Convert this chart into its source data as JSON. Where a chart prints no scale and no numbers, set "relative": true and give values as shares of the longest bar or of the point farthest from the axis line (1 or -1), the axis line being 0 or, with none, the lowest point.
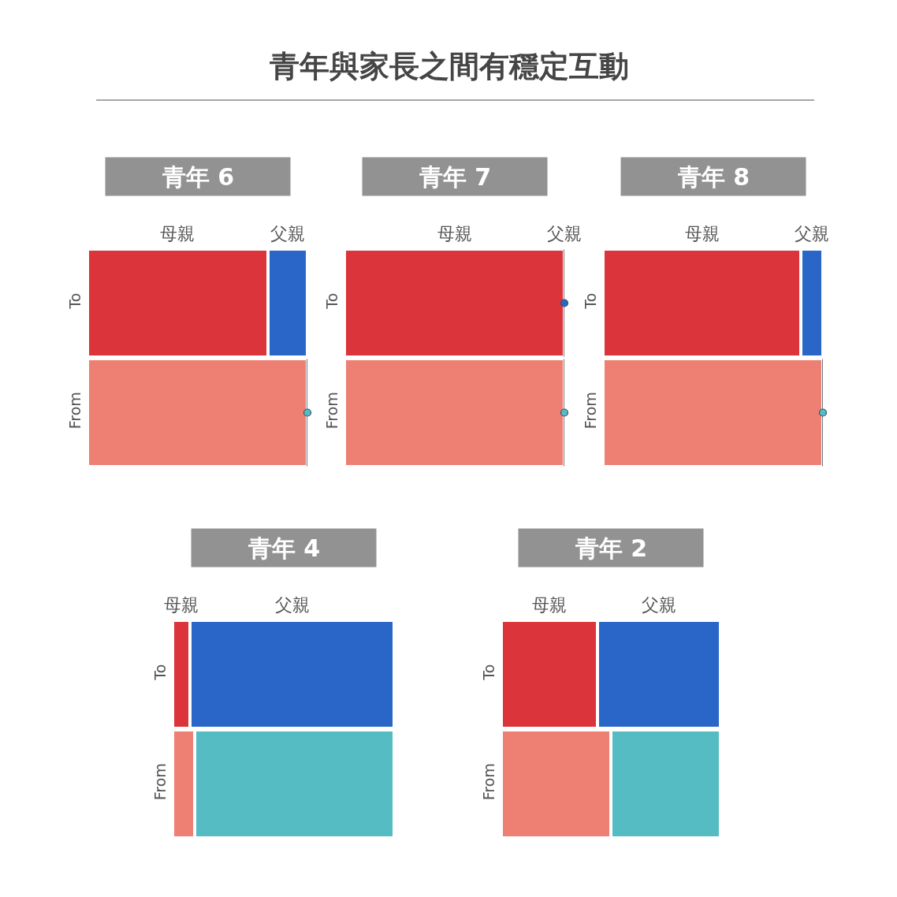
{
  "chart_data": [
    {
      "type": "other",
      "title": "青年與家長之間有穩定互動"
    },
    {
      "type": "bar",
      "orientation": "horizontal",
      "stacked": true,
      "relative": true,
      "title": "青年 6",
      "categories": [
        "To",
        "From"
      ],
      "series": [
        {
          "name": "母親",
          "colors": [
            "#db343a",
            "#ee7f73"
          ],
          "values": [
            0.82,
            1
          ]
        },
        {
          "name": "父親",
          "colors": [
            "#2a66c8",
            "#56bcc3"
          ],
          "values": [
            0.18,
            0
          ]
        }
      ]
    },
    {
      "type": "bar",
      "orientation": "horizontal",
      "stacked": true,
      "relative": true,
      "title": "青年 7",
      "categories": [
        "To",
        "From"
      ],
      "series": [
        {
          "name": "母親",
          "colors": [
            "#db343a",
            "#ee7f73"
          ],
          "values": [
            1,
            1
          ]
        },
        {
          "name": "父親",
          "colors": [
            "#2a66c8",
            "#56bcc3"
          ],
          "values": [
            0,
            0
          ]
        }
      ]
    },
    {
      "type": "bar",
      "orientation": "horizontal",
      "stacked": true,
      "relative": true,
      "title": "青年 8",
      "categories": [
        "To",
        "From"
      ],
      "series": [
        {
          "name": "母親",
          "colors": [
            "#db343a",
            "#ee7f73"
          ],
          "values": [
            0.9,
            1
          ]
        },
        {
          "name": "父親",
          "colors": [
            "#2a66c8",
            "#56bcc3"
          ],
          "values": [
            0.1,
            0
          ]
        }
      ]
    },
    {
      "type": "bar",
      "orientation": "horizontal",
      "stacked": true,
      "relative": true,
      "title": "青年 4",
      "categories": [
        "To",
        "From"
      ],
      "series": [
        {
          "name": "母親",
          "colors": [
            "#db343a",
            "#ee7f73"
          ],
          "values": [
            0.08,
            0.1
          ]
        },
        {
          "name": "父親",
          "colors": [
            "#2a66c8",
            "#56bcc3"
          ],
          "values": [
            0.92,
            0.9
          ]
        }
      ]
    },
    {
      "type": "bar",
      "orientation": "horizontal",
      "stacked": true,
      "relative": true,
      "title": "青年 2",
      "categories": [
        "To",
        "From"
      ],
      "series": [
        {
          "name": "母親",
          "colors": [
            "#db343a",
            "#ee7f73"
          ],
          "values": [
            0.44,
            0.5
          ]
        },
        {
          "name": "父親",
          "colors": [
            "#2a66c8",
            "#56bcc3"
          ],
          "values": [
            0.56,
            0.5
          ]
        }
      ]
    }
  ]
}
